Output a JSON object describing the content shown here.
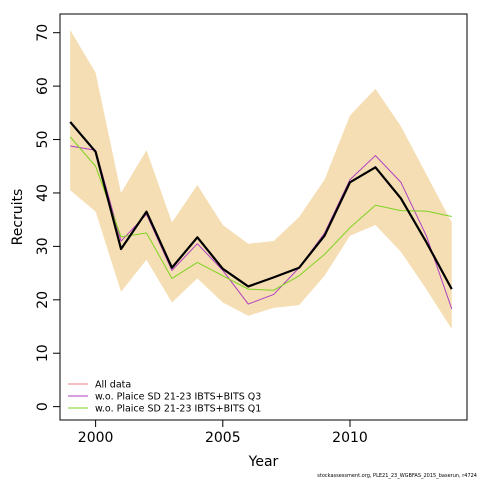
{
  "chart_data": {
    "type": "line",
    "xlabel": "Year",
    "ylabel": "Recruits",
    "xlim": [
      1998.6,
      2014.6
    ],
    "ylim": [
      -2.5,
      73.5
    ],
    "x_ticks": [
      2000,
      2005,
      2010
    ],
    "y_ticks": [
      0,
      10,
      20,
      30,
      40,
      50,
      60,
      70
    ],
    "x": [
      1999,
      2000,
      2001,
      2002,
      2003,
      2004,
      2005,
      2006,
      2007,
      2008,
      2009,
      2010,
      2011,
      2012,
      2013,
      2014
    ],
    "band": {
      "color": "#f5deb3",
      "upper": [
        70.5,
        62.5,
        40.0,
        48.0,
        34.5,
        41.5,
        34.0,
        30.5,
        31.0,
        35.5,
        42.5,
        54.5,
        59.5,
        52.5,
        43.5,
        34.5
      ],
      "lower": [
        40.5,
        36.5,
        21.5,
        27.5,
        19.5,
        24.0,
        19.5,
        17.0,
        18.5,
        19.0,
        24.5,
        32.0,
        34.0,
        29.0,
        22.0,
        14.5
      ]
    },
    "series": [
      {
        "name": "All data",
        "color": "#000000",
        "width": 2.2,
        "values": [
          53.3,
          47.7,
          29.5,
          36.5,
          26.0,
          31.7,
          25.8,
          22.5,
          24.2,
          26.0,
          32.0,
          42.0,
          44.8,
          39.0,
          30.8,
          22.0
        ]
      },
      {
        "name": "w.o. Plaice SD 21-23 IBTS+BITS Q3",
        "color": "#b03ec0",
        "width": 1,
        "values": [
          48.8,
          48.0,
          31.0,
          36.0,
          25.5,
          30.5,
          25.5,
          19.2,
          21.0,
          26.0,
          32.5,
          42.5,
          47.0,
          42.0,
          32.0,
          18.3
        ]
      },
      {
        "name": "w.o. Plaice SD 21-23 IBTS+BITS Q1",
        "color": "#7ed321",
        "width": 1,
        "values": [
          50.5,
          45.0,
          31.8,
          32.5,
          24.0,
          27.0,
          24.5,
          22.0,
          21.8,
          24.5,
          28.5,
          33.5,
          37.7,
          36.7,
          36.6,
          35.6
        ]
      }
    ],
    "legend": {
      "placement": "bottom-left",
      "entries": [
        {
          "label": "All data",
          "color": "#f08080"
        },
        {
          "label": "w.o. Plaice SD 21-23 IBTS+BITS Q3",
          "color": "#b03ec0"
        },
        {
          "label": "w.o. Plaice SD 21-23 IBTS+BITS Q1",
          "color": "#7ed321"
        }
      ]
    },
    "grid": false
  },
  "footnote": "stockassessment.org, PLE21_23_WGBFAS_2015_baserun, r4724"
}
